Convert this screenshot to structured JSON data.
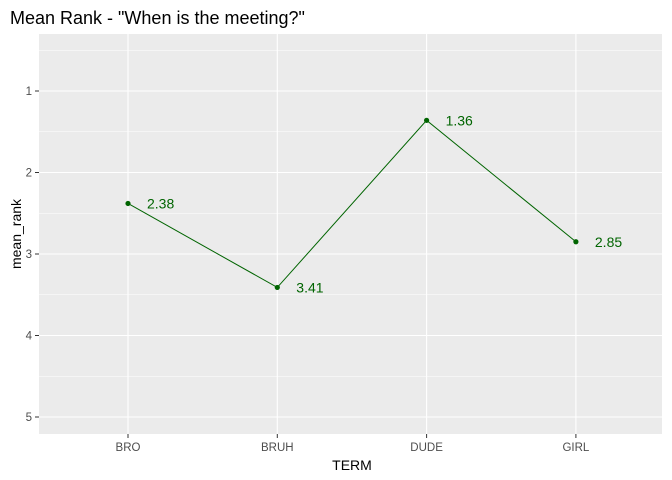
{
  "chart_data": {
    "type": "line",
    "title": "Mean Rank - \"When is the meeting?\"",
    "xlabel": "TERM",
    "ylabel": "mean_rank",
    "categories": [
      "BRO",
      "BRUH",
      "DUDE",
      "GIRL"
    ],
    "values": [
      2.38,
      3.41,
      1.36,
      2.85
    ],
    "data_labels": [
      "2.38",
      "3.41",
      "1.36",
      "2.85"
    ],
    "y_reversed": true,
    "ylim": [
      0.5,
      5.2
    ],
    "yticks": [
      1,
      2,
      3,
      4,
      5
    ],
    "ytick_labels": [
      "1",
      "2",
      "3",
      "4",
      "5"
    ],
    "grid": true,
    "colors": {
      "series": "#006400",
      "panel_bg": "#ebebeb",
      "grid_major": "#ffffff",
      "tick_text": "#4d4d4d",
      "tick_mark": "#333333"
    }
  }
}
